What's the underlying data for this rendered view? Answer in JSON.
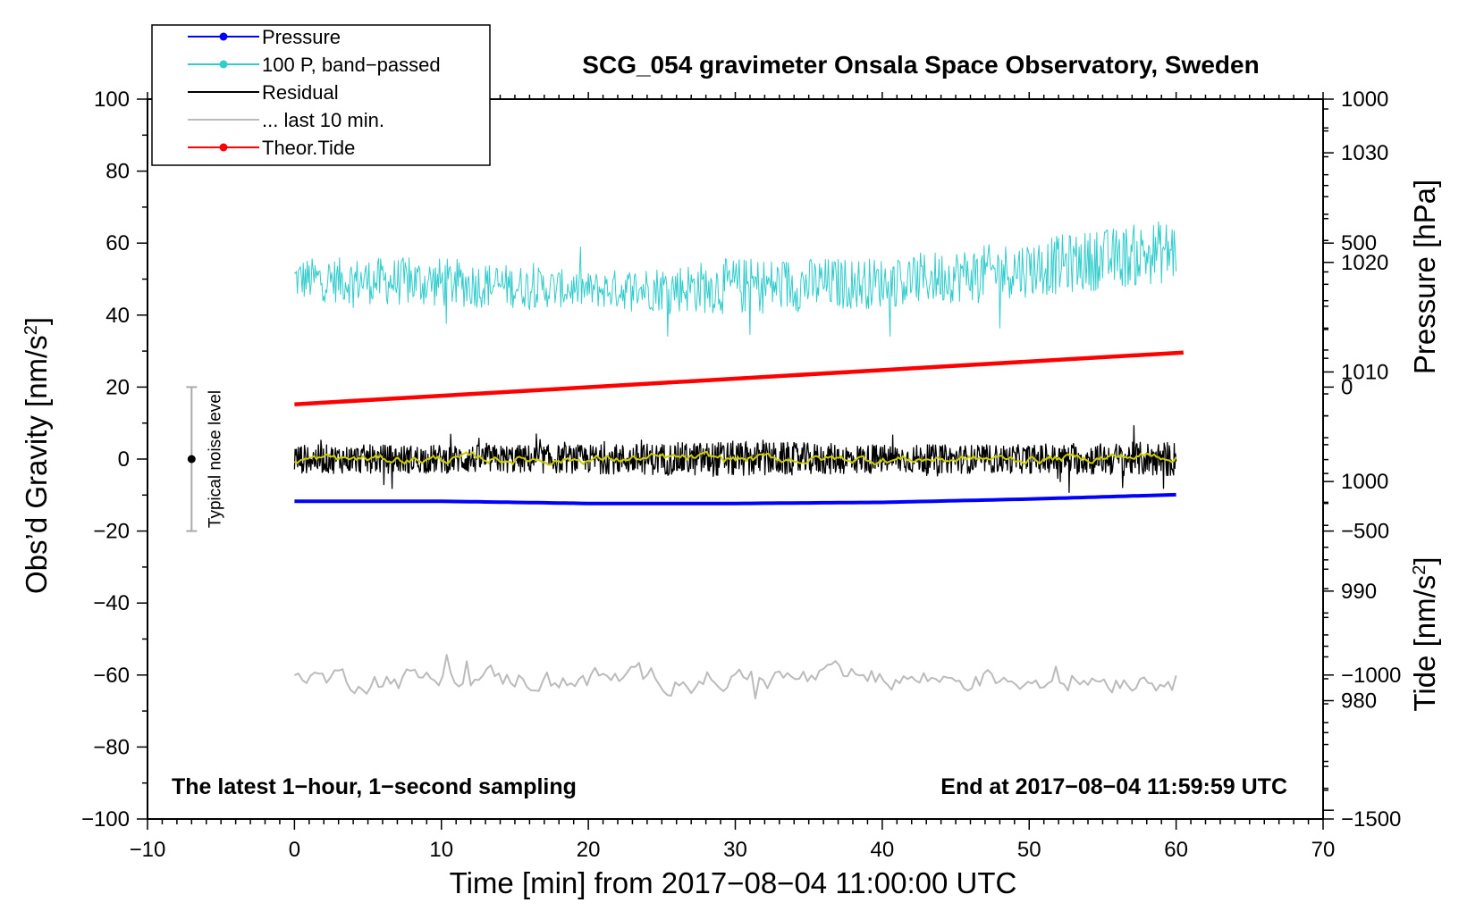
{
  "chart_data": {
    "type": "line",
    "title": "SCG_054 gravimeter Onsala Space Observatory, Sweden",
    "xlabel": "Time [min] from 2017−08−04 11:00:00 UTC",
    "ylabel": "Obs’d Gravity [nm/s",
    "ylabel_sup": "2",
    "ylabel_end": "]",
    "xlim": [
      -10,
      70
    ],
    "ylim": [
      -100,
      100
    ],
    "x_ticks": [
      -10,
      0,
      10,
      20,
      30,
      40,
      50,
      60,
      70
    ],
    "x_tick_labels": [
      "−10",
      "0",
      "10",
      "20",
      "30",
      "40",
      "50",
      "60",
      "70"
    ],
    "y_ticks": [
      -100,
      -80,
      -60,
      -40,
      -20,
      0,
      20,
      40,
      60,
      80,
      100
    ],
    "y_tick_labels": [
      "−100",
      "−80",
      "−60",
      "−40",
      "−20",
      "0",
      "20",
      "40",
      "60",
      "80",
      "100"
    ],
    "pressure_axis": {
      "label": "Pressure [hPa]",
      "range": [
        969.2,
        1034.9
      ],
      "ticks": [
        980,
        990,
        1000,
        1010,
        1020,
        1030
      ],
      "tick_labels": [
        "980",
        "990",
        "1000",
        "1010",
        "1020",
        "1030"
      ]
    },
    "tide_axis": {
      "label": "Tide [nm/s",
      "label_sup": "2",
      "label_end": "]",
      "range": [
        -1500,
        1000
      ],
      "ticks": [
        -1500,
        -1000,
        -500,
        0,
        500,
        1000
      ],
      "tick_labels": [
        "−1500",
        "−1000",
        "−500",
        "0",
        "500",
        "1000"
      ]
    },
    "series": [
      {
        "name": "Pressure",
        "color": "#0000ff",
        "axis": "pressure",
        "x": [
          0,
          10,
          20,
          30,
          40,
          50,
          60
        ],
        "y": [
          998.2,
          998.2,
          998.0,
          998.0,
          998.1,
          998.4,
          998.8
        ]
      },
      {
        "name": "100 P, band−passed",
        "color": "#33cccc",
        "axis": "left",
        "x": [
          0,
          10,
          20,
          30,
          40,
          50,
          60
        ],
        "y": [
          50,
          49,
          47,
          48,
          49,
          53,
          58
        ],
        "amplitude": [
          6,
          7,
          5,
          8,
          7,
          8,
          9
        ]
      },
      {
        "name": "Residual",
        "color": "#000000",
        "axis": "left",
        "x": [
          0,
          10,
          20,
          30,
          40,
          50,
          60
        ],
        "y": [
          0,
          0,
          0,
          0,
          0,
          0,
          0
        ],
        "amplitude": [
          4,
          4,
          4,
          5,
          4,
          4,
          5
        ]
      },
      {
        "name": "... last 10 min.",
        "color": "#bbbbbb",
        "axis": "left",
        "x": [
          0,
          10,
          20,
          30,
          40,
          50,
          60
        ],
        "y": [
          -61,
          -61,
          -61,
          -61,
          -61,
          -61,
          -61
        ],
        "amplitude": [
          3,
          3,
          3,
          3,
          3,
          3,
          3
        ]
      },
      {
        "name": "Theor.Tide",
        "color": "#ff0000",
        "axis": "tide",
        "x": [
          0,
          60.5
        ],
        "y": [
          -60,
          120
        ]
      },
      {
        "name": "smoothed residual",
        "color": "#cccc00",
        "axis": "left",
        "x": [
          0,
          10,
          20,
          30,
          40,
          50,
          60
        ],
        "y": [
          0,
          0,
          0,
          0,
          0,
          0,
          1
        ]
      }
    ],
    "legend": {
      "position": "top-left",
      "entries": [
        {
          "label": "Pressure",
          "color": "#0000ff",
          "marker": true
        },
        {
          "label": "100 P, band−passed",
          "color": "#33cccc",
          "marker": true
        },
        {
          "label": "Residual",
          "color": "#000000",
          "marker": false
        },
        {
          "label": "... last 10 min.",
          "color": "#bbbbbb",
          "marker": false
        },
        {
          "label": "Theor.Tide",
          "color": "#ff0000",
          "marker": true
        }
      ]
    },
    "noise_bar": {
      "x": -7,
      "center": 0,
      "low": -20,
      "high": 20,
      "label": "Typical noise level"
    },
    "annotations": {
      "bottom_left": "The latest 1−hour, 1−second sampling",
      "bottom_right": "End at 2017−08−04 11:59:59 UTC"
    }
  }
}
